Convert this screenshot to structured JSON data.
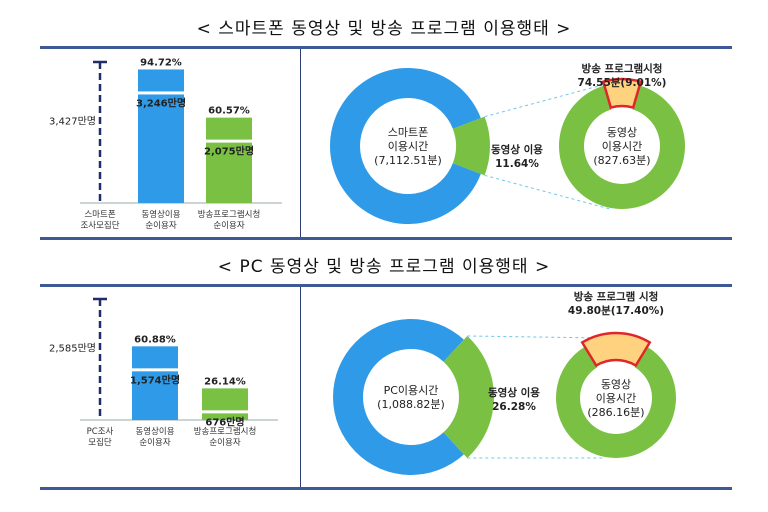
{
  "sections": [
    {
      "title": "< 스마트폰 동영상 및 방송 프로그램 이용행태 >",
      "colors": {
        "panel": "#2f9be8",
        "video": "#7ac143",
        "broadcast": "#ffd27f",
        "broadcast_stroke": "#e0262b"
      }
    },
    {
      "title": "< PC 동영상 및 방송 프로그램 이용행태 >",
      "colors": {
        "panel": "#2f9be8",
        "video": "#7ac143",
        "broadcast": "#ffd27f",
        "broadcast_stroke": "#e0262b"
      }
    }
  ],
  "chart_data": [
    {
      "type": "bar",
      "categories": [
        "스마트폰\n조사모집단",
        "동영상이용\n순이용자",
        "방송프로그램시청\n순이용자"
      ],
      "panel_total_label": "3,427만명",
      "panel_total": 3427,
      "series": [
        {
          "values": [
            3427,
            3246,
            2075
          ]
        }
      ],
      "value_labels": [
        "3,246만명",
        "2,075만명"
      ],
      "percent_labels": [
        "94.72%",
        "60.57%"
      ]
    },
    {
      "type": "pie",
      "rings": [
        {
          "center_label": [
            "스마트폰",
            "이용시간",
            "(7,112.51분)"
          ],
          "total": 7112.51,
          "highlight_share": 11.64
        },
        {
          "center_label": [
            "동영상",
            "이용시간",
            "(827.63분)"
          ],
          "total": 827.63,
          "highlight_share": 9.01
        }
      ],
      "link_label": [
        "동영상 이용",
        "11.64%"
      ],
      "top_label": [
        "방송 프로그램시청",
        "74.55분(9.01%)"
      ]
    },
    {
      "type": "bar",
      "categories": [
        "PC조사\n모집단",
        "동영상이용\n순이용자",
        "방송프로그램시청\n순이용자"
      ],
      "panel_total_label": "2,585만명",
      "panel_total": 2585,
      "series": [
        {
          "values": [
            2585,
            1574,
            676
          ]
        }
      ],
      "value_labels": [
        "1,574만명",
        "676만명"
      ],
      "percent_labels": [
        "60.88%",
        "26.14%"
      ]
    },
    {
      "type": "pie",
      "rings": [
        {
          "center_label": [
            "PC이용시간",
            "(1,088.82분)"
          ],
          "total": 1088.82,
          "highlight_share": 26.28
        },
        {
          "center_label": [
            "동영상",
            "이용시간",
            "(286.16분)"
          ],
          "total": 286.16,
          "highlight_share": 17.4
        }
      ],
      "link_label": [
        "동영상 이용",
        "26.28%"
      ],
      "top_label": [
        "방송 프로그램 시청",
        "49.80분(17.40%)"
      ]
    }
  ]
}
